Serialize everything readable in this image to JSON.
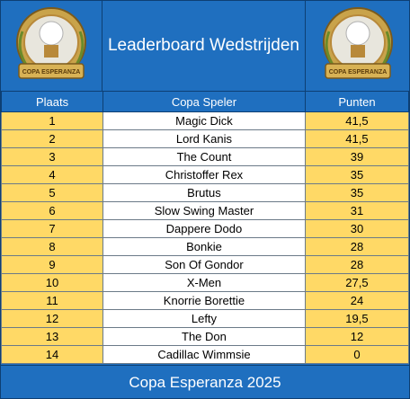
{
  "header": {
    "title": "Leaderboard Wedstrijden",
    "logo_left": {
      "icon": "golf-trophy-emblem-icon",
      "text": "COPA ESPERANZA"
    },
    "logo_right": {
      "icon": "golf-trophy-emblem-icon",
      "text": "COPA ESPERANZA"
    }
  },
  "table": {
    "columns": [
      "Plaats",
      "Copa Speler",
      "Punten"
    ],
    "rows": [
      {
        "rank": "1",
        "name": "Magic Dick",
        "points": "41,5"
      },
      {
        "rank": "2",
        "name": "Lord Kanis",
        "points": "41,5"
      },
      {
        "rank": "3",
        "name": "The Count",
        "points": "39"
      },
      {
        "rank": "4",
        "name": "Christoffer Rex",
        "points": "35"
      },
      {
        "rank": "5",
        "name": "Brutus",
        "points": "35"
      },
      {
        "rank": "6",
        "name": "Slow Swing Master",
        "points": "31"
      },
      {
        "rank": "7",
        "name": "Dappere Dodo",
        "points": "30"
      },
      {
        "rank": "8",
        "name": "Bonkie",
        "points": "28"
      },
      {
        "rank": "9",
        "name": "Son Of Gondor",
        "points": "28"
      },
      {
        "rank": "10",
        "name": "X-Men",
        "points": "27,5"
      },
      {
        "rank": "11",
        "name": "Knorrie Borettie",
        "points": "24"
      },
      {
        "rank": "12",
        "name": "Lefty",
        "points": "19,5"
      },
      {
        "rank": "13",
        "name": "The Don",
        "points": "12"
      },
      {
        "rank": "14",
        "name": "Cadillac Wimmsie",
        "points": "0"
      }
    ]
  },
  "footer": {
    "text": "Copa Esperanza 2025"
  },
  "colors": {
    "header_blue": "#1f6fbf",
    "gold_cell": "#ffd966",
    "white_cell": "#ffffff",
    "border": "#0d3f73"
  }
}
